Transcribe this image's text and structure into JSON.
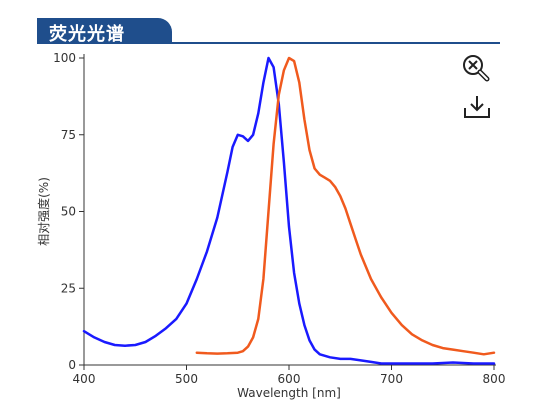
{
  "header": {
    "title": "荧光光谱"
  },
  "toolbar": {
    "zoom_icon": "zoom-reset-icon",
    "download_icon": "download-icon"
  },
  "chart_data": {
    "type": "line",
    "xlabel": "Wavelength [nm]",
    "ylabel": "相对强度(%)",
    "xlim": [
      400,
      800
    ],
    "ylim": [
      0,
      100
    ],
    "x_ticks": [
      "400",
      "500",
      "600",
      "700",
      "800"
    ],
    "y_ticks": [
      "0",
      "25",
      "50",
      "75",
      "100"
    ],
    "grid": false,
    "series": [
      {
        "color": "#1a1aff",
        "points": [
          [
            400,
            11
          ],
          [
            410,
            9
          ],
          [
            420,
            7.5
          ],
          [
            430,
            6.5
          ],
          [
            440,
            6.3
          ],
          [
            450,
            6.5
          ],
          [
            460,
            7.5
          ],
          [
            470,
            9.5
          ],
          [
            480,
            12
          ],
          [
            490,
            15
          ],
          [
            500,
            20
          ],
          [
            510,
            28
          ],
          [
            520,
            37
          ],
          [
            530,
            48
          ],
          [
            540,
            63
          ],
          [
            545,
            71
          ],
          [
            550,
            75
          ],
          [
            555,
            74.5
          ],
          [
            560,
            73
          ],
          [
            565,
            75
          ],
          [
            570,
            82
          ],
          [
            575,
            92
          ],
          [
            580,
            100
          ],
          [
            585,
            97
          ],
          [
            590,
            85
          ],
          [
            595,
            66
          ],
          [
            600,
            45
          ],
          [
            605,
            30
          ],
          [
            610,
            20
          ],
          [
            615,
            13
          ],
          [
            620,
            8
          ],
          [
            625,
            5
          ],
          [
            630,
            3.5
          ],
          [
            640,
            2.5
          ],
          [
            650,
            2
          ],
          [
            660,
            2
          ],
          [
            670,
            1.5
          ],
          [
            680,
            1
          ],
          [
            690,
            0.5
          ],
          [
            700,
            0.5
          ],
          [
            720,
            0.5
          ],
          [
            740,
            0.5
          ],
          [
            760,
            0.8
          ],
          [
            780,
            0.5
          ],
          [
            800,
            0.5
          ]
        ]
      },
      {
        "color": "#f05a1e",
        "points": [
          [
            510,
            4
          ],
          [
            520,
            3.8
          ],
          [
            530,
            3.7
          ],
          [
            540,
            3.8
          ],
          [
            550,
            4
          ],
          [
            555,
            4.5
          ],
          [
            560,
            6
          ],
          [
            565,
            9
          ],
          [
            570,
            15
          ],
          [
            575,
            28
          ],
          [
            580,
            50
          ],
          [
            585,
            72
          ],
          [
            590,
            88
          ],
          [
            595,
            96
          ],
          [
            600,
            100
          ],
          [
            605,
            99
          ],
          [
            610,
            92
          ],
          [
            615,
            80
          ],
          [
            620,
            70
          ],
          [
            625,
            64
          ],
          [
            630,
            62
          ],
          [
            635,
            61
          ],
          [
            640,
            60
          ],
          [
            645,
            58
          ],
          [
            650,
            55
          ],
          [
            655,
            51
          ],
          [
            660,
            46
          ],
          [
            665,
            41
          ],
          [
            670,
            36
          ],
          [
            680,
            28
          ],
          [
            690,
            22
          ],
          [
            700,
            17
          ],
          [
            710,
            13
          ],
          [
            720,
            10
          ],
          [
            730,
            8
          ],
          [
            740,
            6.5
          ],
          [
            750,
            5.5
          ],
          [
            760,
            5
          ],
          [
            770,
            4.5
          ],
          [
            780,
            4
          ],
          [
            790,
            3.5
          ],
          [
            800,
            4
          ]
        ]
      }
    ]
  }
}
